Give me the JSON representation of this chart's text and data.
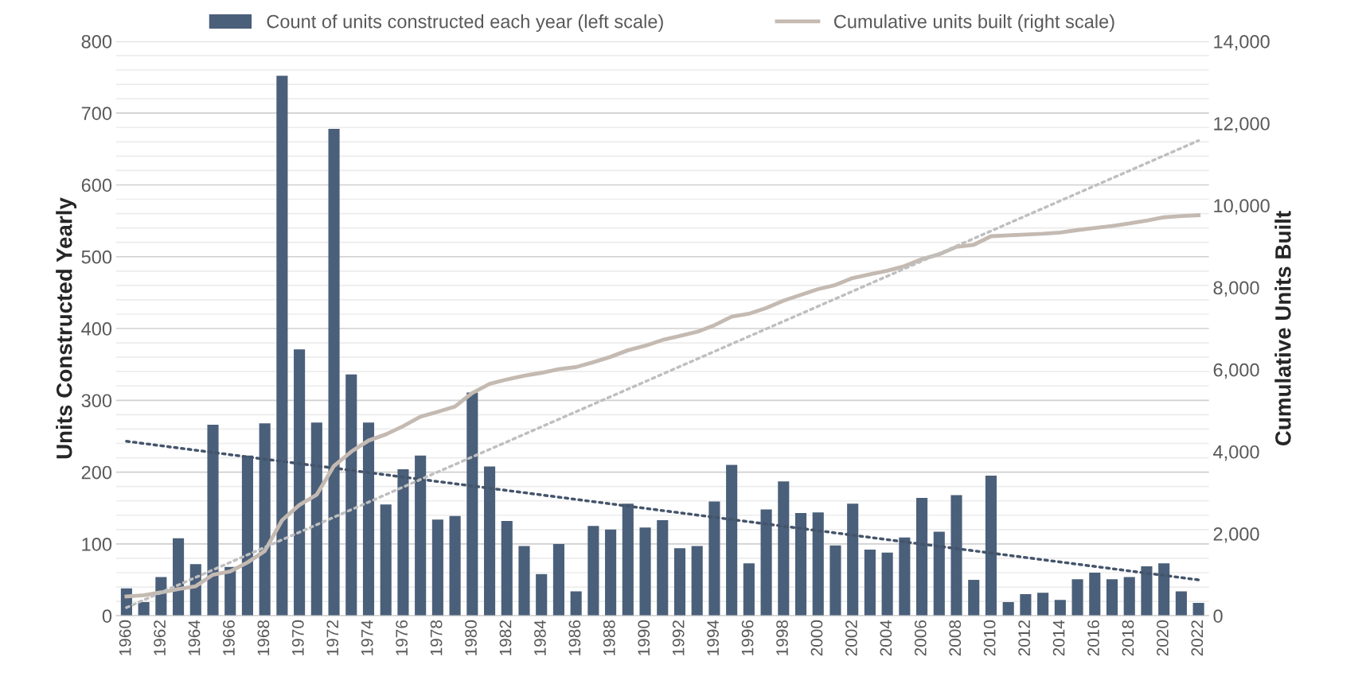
{
  "chart_data": {
    "type": "bar",
    "xlabel": null,
    "ylabel": "Units Constructed Yearly",
    "y2label": "Cumulative Units Built",
    "categories": [
      "1960",
      null,
      "1962",
      null,
      "1964",
      null,
      "1966",
      null,
      "1968",
      null,
      "1970",
      null,
      "1972",
      null,
      "1974",
      null,
      "1976",
      null,
      "1978",
      null,
      "1980",
      null,
      "1982",
      null,
      "1984",
      null,
      "1986",
      null,
      "1988",
      null,
      "1990",
      null,
      "1992",
      null,
      "1994",
      null,
      "1996",
      null,
      "1998",
      null,
      "2000",
      null,
      "2002",
      null,
      "2004",
      null,
      "2006",
      null,
      "2008",
      null,
      "2010",
      null,
      "2012",
      null,
      "2014",
      null,
      "2016",
      null,
      "2018",
      null,
      "2020",
      null,
      "2022"
    ],
    "series": [
      {
        "name": "Count of units constructed each year (left scale)",
        "color": "#4a5f7a",
        "values": [
          38,
          19,
          54,
          108,
          72,
          266,
          68,
          223,
          268,
          752,
          371,
          269,
          678,
          336,
          269,
          155,
          204,
          223,
          134,
          139,
          311,
          208,
          132,
          97,
          58,
          100,
          34,
          125,
          120,
          156,
          123,
          133,
          94,
          97,
          159,
          210,
          73,
          148,
          187,
          143,
          144,
          98,
          156,
          92,
          88,
          109,
          164,
          117,
          168,
          50,
          195,
          19,
          30,
          32,
          22,
          51,
          60,
          51,
          54,
          69,
          73,
          34,
          18
        ]
      },
      {
        "name": "Cumulative units built (right scale)",
        "type": "line",
        "axis": "y2",
        "color": "#c4bab2",
        "values": [
          470,
          500,
          570,
          650,
          720,
          1000,
          1080,
          1300,
          1580,
          2330,
          2700,
          2950,
          3650,
          4000,
          4270,
          4420,
          4620,
          4850,
          4970,
          5100,
          5430,
          5650,
          5760,
          5850,
          5920,
          6010,
          6060,
          6180,
          6310,
          6470,
          6580,
          6720,
          6820,
          6920,
          7080,
          7290,
          7360,
          7500,
          7680,
          7820,
          7960,
          8060,
          8230,
          8320,
          8410,
          8520,
          8690,
          8810,
          8990,
          9040,
          9250,
          9270,
          9290,
          9310,
          9340,
          9400,
          9450,
          9500,
          9560,
          9630,
          9710,
          9740,
          9760
        ]
      },
      {
        "type": "line",
        "line_style": "dotted",
        "color": "#44546a",
        "values": [
          243,
          null,
          null,
          null,
          null,
          null,
          null,
          null,
          null,
          null,
          null,
          null,
          null,
          null,
          null,
          null,
          null,
          null,
          null,
          null,
          null,
          null,
          null,
          null,
          null,
          null,
          null,
          null,
          null,
          null,
          null,
          null,
          null,
          null,
          null,
          null,
          null,
          null,
          null,
          null,
          null,
          null,
          null,
          null,
          null,
          null,
          null,
          null,
          null,
          null,
          null,
          null,
          null,
          null,
          null,
          null,
          null,
          null,
          null,
          null,
          null,
          null,
          50
        ]
      },
      {
        "type": "line",
        "line_style": "dotted",
        "axis": "y2",
        "color": "#bfbfbf",
        "values": [
          200,
          null,
          null,
          null,
          null,
          null,
          null,
          null,
          null,
          null,
          null,
          null,
          null,
          null,
          null,
          null,
          null,
          null,
          null,
          null,
          null,
          null,
          null,
          null,
          null,
          null,
          null,
          null,
          null,
          null,
          null,
          null,
          null,
          null,
          null,
          null,
          null,
          null,
          null,
          null,
          null,
          null,
          null,
          null,
          null,
          null,
          null,
          null,
          null,
          null,
          null,
          null,
          null,
          null,
          null,
          null,
          null,
          null,
          null,
          null,
          null,
          null,
          11580
        ]
      }
    ],
    "ylim": [
      0,
      800
    ],
    "yticks": [
      0,
      {
        "value": 20,
        "label": null
      },
      {
        "value": 40,
        "label": null
      },
      {
        "value": 60,
        "label": null
      },
      {
        "value": 80,
        "label": null
      },
      100,
      {
        "value": 120,
        "label": null
      },
      {
        "value": 140,
        "label": null
      },
      {
        "value": 160,
        "label": null
      },
      {
        "value": 180,
        "label": null
      },
      200,
      {
        "value": 220,
        "label": null
      },
      {
        "value": 240,
        "label": null
      },
      {
        "value": 260,
        "label": null
      },
      {
        "value": 280,
        "label": null
      },
      300,
      {
        "value": 320,
        "label": null
      },
      {
        "value": 340,
        "label": null
      },
      {
        "value": 360,
        "label": null
      },
      {
        "value": 380,
        "label": null
      },
      400,
      {
        "value": 420,
        "label": null
      },
      {
        "value": 440,
        "label": null
      },
      {
        "value": 460,
        "label": null
      },
      {
        "value": 480,
        "label": null
      },
      500,
      {
        "value": 520,
        "label": null
      },
      {
        "value": 540,
        "label": null
      },
      {
        "value": 560,
        "label": null
      },
      {
        "value": 580,
        "label": null
      },
      600,
      {
        "value": 620,
        "label": null
      },
      {
        "value": 640,
        "label": null
      },
      {
        "value": 660,
        "label": null
      },
      {
        "value": 680,
        "label": null
      },
      700,
      {
        "value": 720,
        "label": null
      },
      {
        "value": 740,
        "label": null
      },
      {
        "value": 760,
        "label": null
      },
      {
        "value": 780,
        "label": null
      },
      800
    ],
    "y2lim": [
      0,
      14000
    ],
    "y2ticks": [
      {
        "value": 0,
        "label": "0"
      },
      {
        "value": 2000,
        "label": "2,000"
      },
      {
        "value": 4000,
        "label": "4,000"
      },
      {
        "value": 6000,
        "label": "6,000"
      },
      {
        "value": 8000,
        "label": "8,000"
      },
      {
        "value": 10000,
        "label": "10,000"
      },
      {
        "value": 12000,
        "label": "12,000"
      },
      {
        "value": 14000,
        "label": "14,000"
      }
    ],
    "grid": "y",
    "legend": "top"
  }
}
